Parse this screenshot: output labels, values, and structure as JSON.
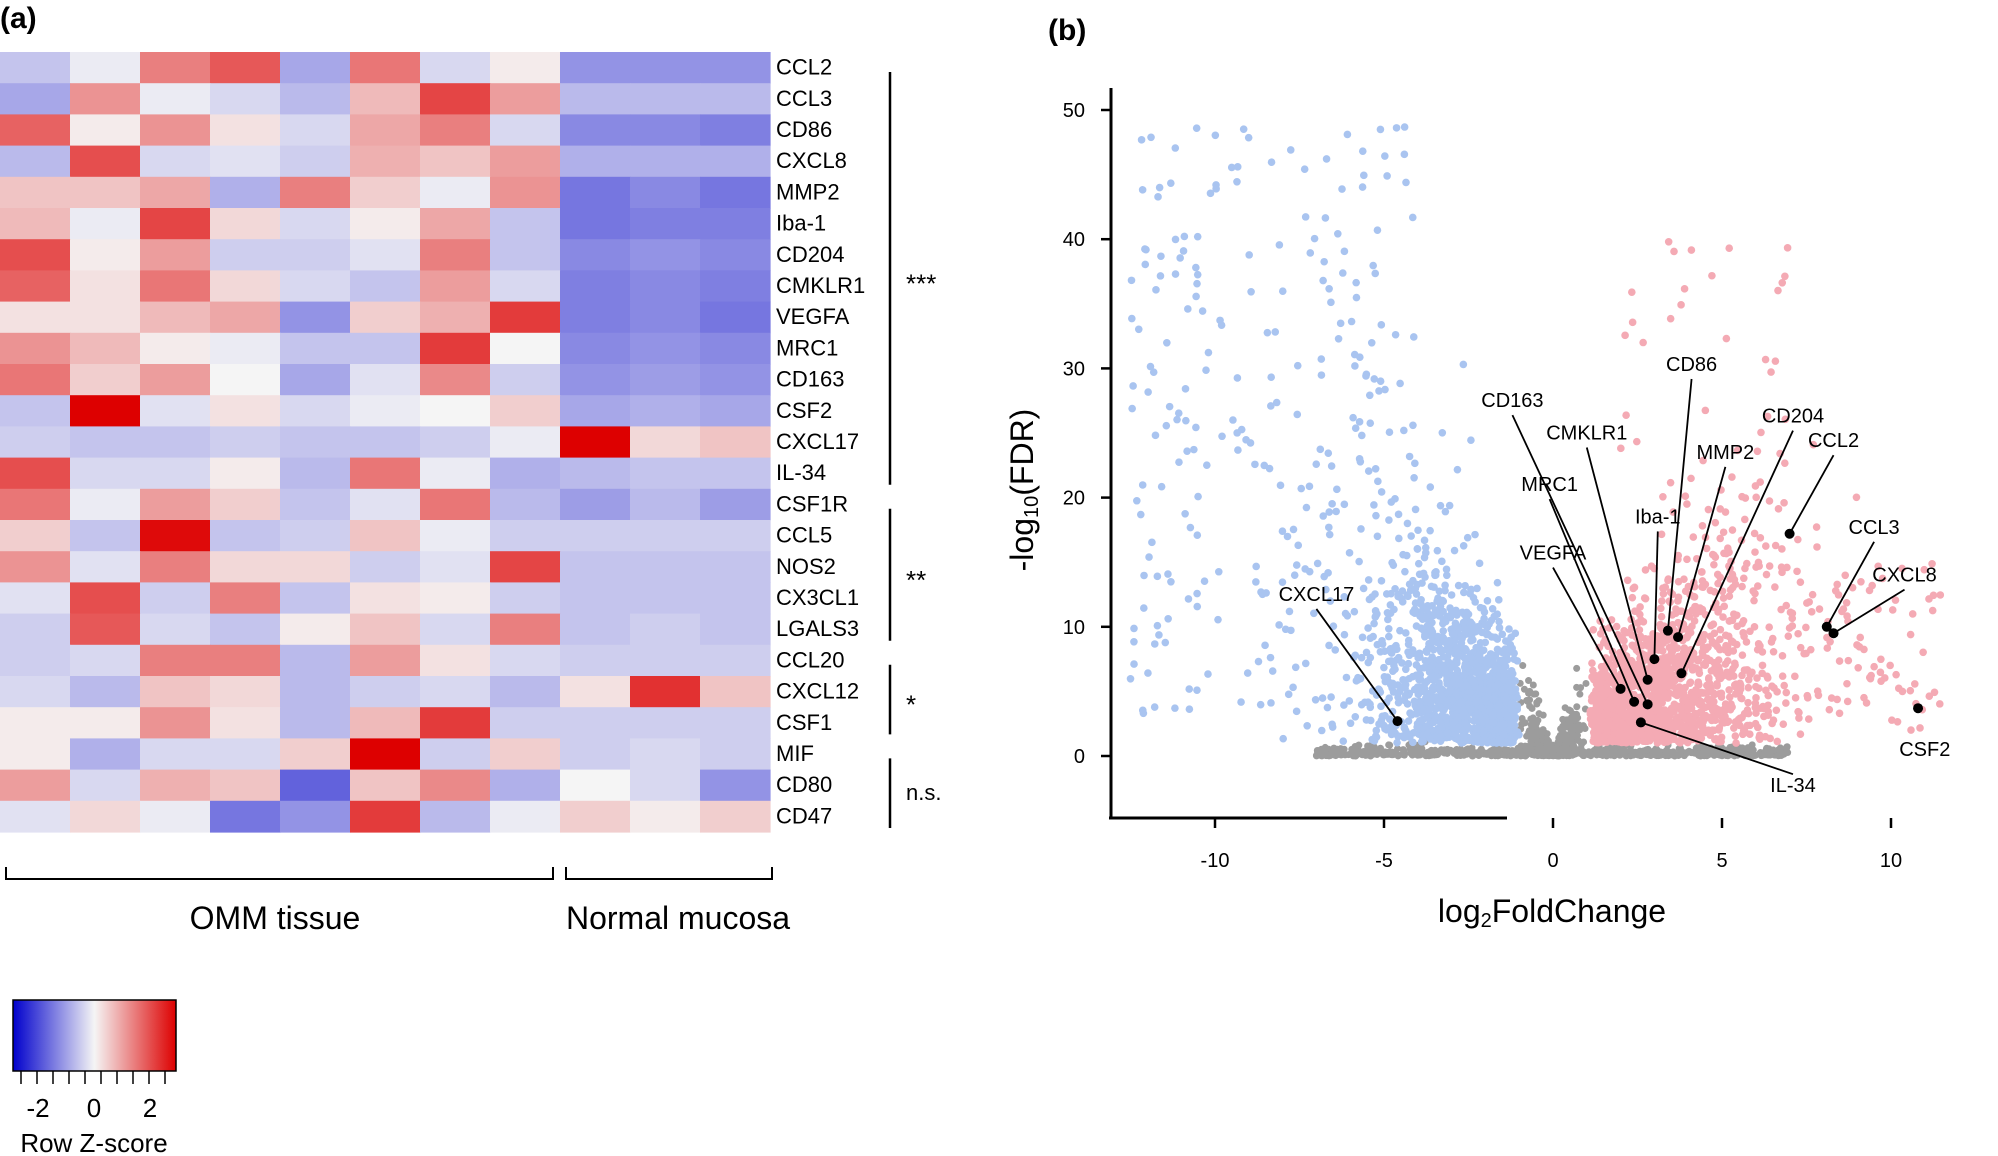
{
  "chart_data": [
    {
      "type": "heatmap",
      "panel_label": "(a)",
      "genes": [
        "CCL2",
        "CCL3",
        "CD86",
        "CXCL8",
        "MMP2",
        "Iba-1",
        "CD204",
        "CMKLR1",
        "VEGFA",
        "MRC1",
        "CD163",
        "CSF2",
        "CXCL17",
        "IL-34",
        "CSF1R",
        "CCL5",
        "NOS2",
        "CX3CL1",
        "LGALS3",
        "CCL20",
        "CXCL12",
        "CSF1",
        "MIF",
        "CD80",
        "CD47"
      ],
      "groups": [
        {
          "label": "OMM tissue",
          "n_samples": 8
        },
        {
          "label": "Normal mucosa",
          "n_samples": 3
        }
      ],
      "z_scores": [
        [
          -0.5,
          -0.1,
          1.2,
          1.6,
          -0.8,
          1.3,
          -0.3,
          0.1,
          -1.0,
          -1.0,
          -1.0
        ],
        [
          -0.8,
          1.0,
          -0.1,
          -0.3,
          -0.6,
          0.6,
          1.8,
          0.9,
          -0.6,
          -0.6,
          -0.6
        ],
        [
          1.5,
          0.1,
          1.0,
          0.2,
          -0.3,
          0.8,
          1.2,
          -0.3,
          -1.1,
          -1.1,
          -1.2
        ],
        [
          -0.6,
          1.7,
          -0.3,
          -0.2,
          -0.4,
          0.7,
          0.5,
          0.9,
          -0.7,
          -0.7,
          -0.7
        ],
        [
          0.5,
          0.5,
          0.8,
          -0.7,
          1.2,
          0.4,
          -0.1,
          1.0,
          -1.3,
          -1.1,
          -1.3
        ],
        [
          0.6,
          -0.1,
          1.8,
          0.3,
          -0.3,
          0.1,
          0.8,
          -0.5,
          -1.3,
          -1.2,
          -1.2
        ],
        [
          1.7,
          0.1,
          0.9,
          -0.4,
          -0.4,
          -0.2,
          1.2,
          -0.5,
          -1.1,
          -1.0,
          -1.1
        ],
        [
          1.5,
          0.2,
          1.3,
          0.3,
          -0.3,
          -0.5,
          0.9,
          -0.3,
          -1.2,
          -1.1,
          -1.2
        ],
        [
          0.2,
          0.2,
          0.6,
          0.8,
          -1.0,
          0.4,
          0.7,
          1.9,
          -1.2,
          -1.1,
          -1.3
        ],
        [
          1.0,
          0.6,
          0.1,
          -0.1,
          -0.5,
          -0.5,
          1.9,
          0.0,
          -1.1,
          -1.0,
          -1.1
        ],
        [
          1.3,
          0.4,
          0.9,
          0.0,
          -0.8,
          -0.2,
          1.1,
          -0.4,
          -1.0,
          -0.9,
          -1.0
        ],
        [
          -0.5,
          2.5,
          -0.2,
          0.2,
          -0.3,
          -0.1,
          0.0,
          0.4,
          -0.8,
          -0.7,
          -0.8
        ],
        [
          -0.4,
          -0.5,
          -0.5,
          -0.4,
          -0.5,
          -0.5,
          -0.4,
          -0.1,
          2.5,
          0.3,
          0.5
        ],
        [
          1.7,
          -0.3,
          -0.3,
          0.1,
          -0.6,
          1.3,
          -0.1,
          -0.7,
          -0.6,
          -0.5,
          -0.5
        ],
        [
          1.3,
          -0.1,
          0.9,
          0.4,
          -0.5,
          -0.2,
          1.3,
          -0.6,
          -0.9,
          -0.6,
          -0.9
        ],
        [
          0.4,
          -0.5,
          2.4,
          -0.5,
          -0.4,
          0.5,
          -0.1,
          -0.4,
          -0.4,
          -0.4,
          -0.4
        ],
        [
          1.0,
          -0.2,
          1.2,
          0.3,
          0.3,
          -0.4,
          -0.2,
          1.8,
          -0.5,
          -0.5,
          -0.5
        ],
        [
          -0.2,
          1.7,
          -0.4,
          1.2,
          -0.5,
          0.2,
          0.1,
          -0.4,
          -0.5,
          -0.5,
          -0.5
        ],
        [
          -0.4,
          1.6,
          -0.3,
          -0.5,
          0.1,
          0.5,
          -0.3,
          1.2,
          -0.5,
          -0.4,
          -0.5
        ],
        [
          -0.4,
          -0.3,
          1.2,
          1.2,
          -0.6,
          0.9,
          0.2,
          -0.3,
          -0.4,
          -0.4,
          -0.4
        ],
        [
          -0.3,
          -0.6,
          0.5,
          0.3,
          -0.6,
          -0.4,
          -0.3,
          -0.6,
          0.2,
          2.0,
          0.5
        ],
        [
          0.1,
          0.1,
          1.0,
          0.2,
          -0.6,
          0.6,
          1.9,
          -0.4,
          -0.4,
          -0.4,
          -0.4
        ],
        [
          0.1,
          -0.7,
          -0.3,
          -0.3,
          0.4,
          2.5,
          -0.4,
          0.4,
          -0.4,
          -0.3,
          -0.4
        ],
        [
          0.9,
          -0.3,
          0.7,
          0.5,
          -1.5,
          0.5,
          1.1,
          -0.7,
          0.0,
          -0.3,
          -1.0
        ],
        [
          -0.2,
          0.3,
          -0.1,
          -1.3,
          -1.0,
          1.9,
          -0.6,
          -0.1,
          0.4,
          0.1,
          0.4
        ]
      ],
      "significance": [
        {
          "label": "***",
          "from_gene": "CCL2",
          "to_gene": "IL-34"
        },
        {
          "label": "**",
          "from_gene": "CSF1R",
          "to_gene": "LGALS3"
        },
        {
          "label": "*",
          "from_gene": "CCL20",
          "to_gene": "CSF1"
        },
        {
          "label": "n.s.",
          "from_gene": "MIF",
          "to_gene": "CD47"
        }
      ],
      "colorscale": {
        "title": "Row Z-score",
        "ticks": [
          "-2",
          "0",
          "2"
        ],
        "low": "#0000cc",
        "mid": "#f5f5f5",
        "high": "#dd0000",
        "range": [
          -2.5,
          2.5
        ]
      }
    },
    {
      "type": "scatter",
      "panel_label": "(b)",
      "title": "",
      "xlabel": "log2FoldChange",
      "xlabel_base": "log",
      "xlabel_sub": "2",
      "xlabel_rest": "FoldChange",
      "ylabel": "-log10(FDR)",
      "ylabel_pre": "-log",
      "ylabel_sub": "10",
      "ylabel_rest": "(FDR)",
      "xlim": [
        -13,
        12.5
      ],
      "ylim": [
        -4.5,
        52
      ],
      "xticks": [
        "-10",
        "-5",
        "0",
        "5",
        "10"
      ],
      "yticks": [
        "0",
        "10",
        "20",
        "30",
        "40",
        "50"
      ],
      "colors": {
        "down": "#a9c4f0",
        "up": "#f4aab4",
        "ns": "#9c9c9c",
        "highlight": "#000000"
      },
      "labeled_points": [
        {
          "label": "CXCL17",
          "x": -4.6,
          "y": 2.7,
          "label_x": -7.0,
          "label_y": 12.0
        },
        {
          "label": "VEGFA",
          "x": 2.0,
          "y": 5.2,
          "label_x": 0.0,
          "label_y": 15.2
        },
        {
          "label": "MRC1",
          "x": 2.4,
          "y": 4.2,
          "label_x": -0.1,
          "label_y": 20.5
        },
        {
          "label": "CD163",
          "x": 2.8,
          "y": 4.0,
          "label_x": -1.2,
          "label_y": 27.0
        },
        {
          "label": "CMKLR1",
          "x": 2.8,
          "y": 5.9,
          "label_x": 1.0,
          "label_y": 24.5
        },
        {
          "label": "Iba-1",
          "x": 3.0,
          "y": 7.5,
          "label_x": 3.1,
          "label_y": 18.0
        },
        {
          "label": "MMP2",
          "x": 3.7,
          "y": 9.2,
          "label_x": 5.1,
          "label_y": 23.0
        },
        {
          "label": "CD86",
          "x": 3.4,
          "y": 9.7,
          "label_x": 4.1,
          "label_y": 29.8
        },
        {
          "label": "CD204",
          "x": 3.8,
          "y": 6.4,
          "label_x": 7.1,
          "label_y": 25.8
        },
        {
          "label": "CCL2",
          "x": 7.0,
          "y": 17.2,
          "label_x": 8.3,
          "label_y": 23.9
        },
        {
          "label": "CCL3",
          "x": 8.1,
          "y": 10.0,
          "label_x": 9.5,
          "label_y": 17.2
        },
        {
          "label": "CXCL8",
          "x": 8.3,
          "y": 9.5,
          "label_x": 10.4,
          "label_y": 13.5
        },
        {
          "label": "CSF2",
          "x": 10.8,
          "y": 3.7,
          "label_x": 11.0,
          "label_y": 0.0
        },
        {
          "label": "IL-34",
          "x": 2.6,
          "y": 2.6,
          "label_x": 7.1,
          "label_y": -2.8
        }
      ]
    }
  ]
}
